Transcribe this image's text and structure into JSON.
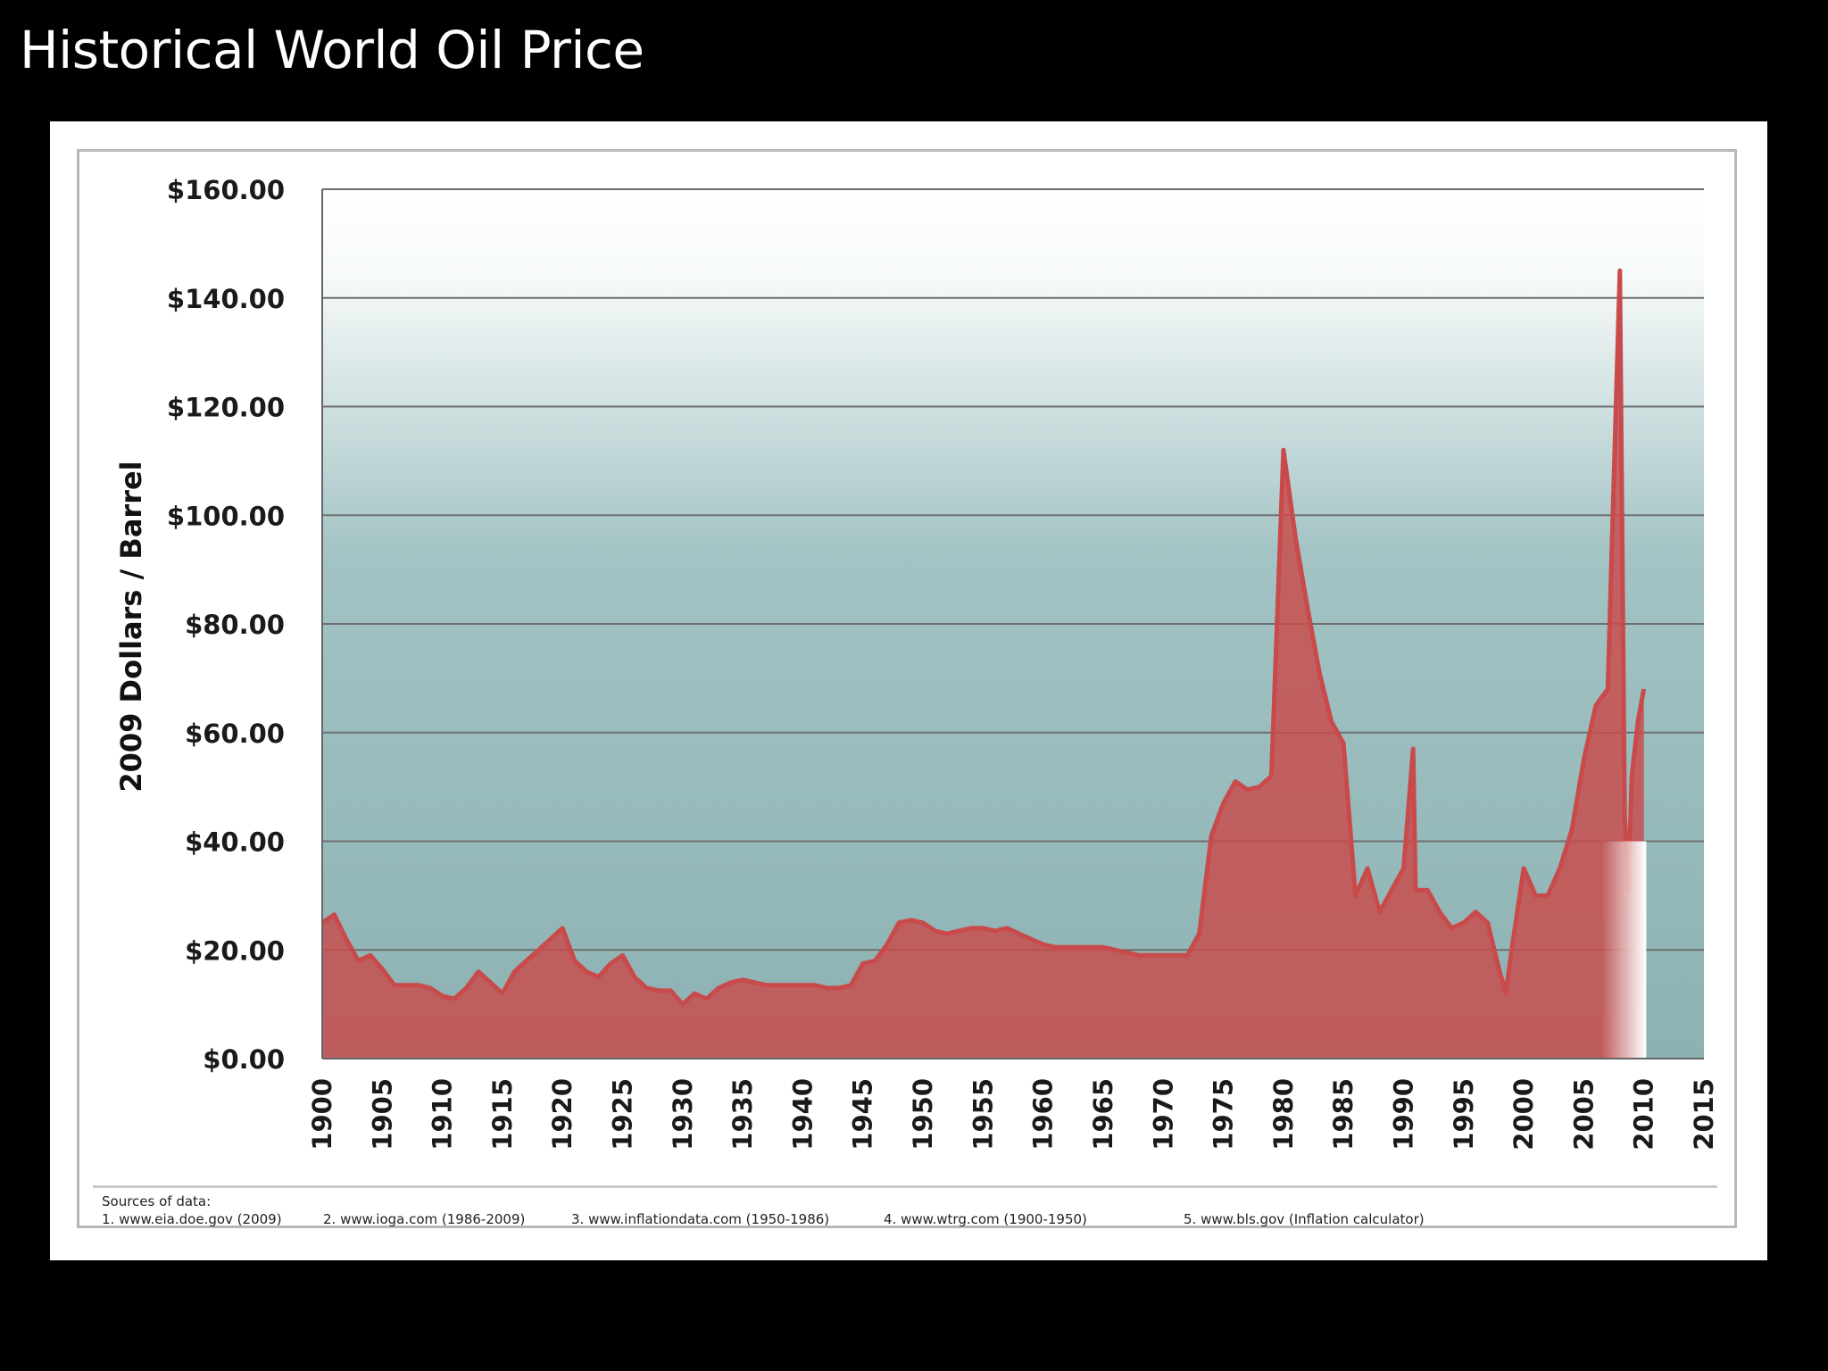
{
  "slide": {
    "title": "Historical World Oil Price"
  },
  "chart_data": {
    "type": "area",
    "title": "",
    "xlabel": "",
    "ylabel": "2009 Dollars / Barrel",
    "xlim": [
      1900,
      2015
    ],
    "ylim": [
      0,
      160
    ],
    "grid": true,
    "y_ticks": [
      "$0.00",
      "$20.00",
      "$40.00",
      "$60.00",
      "$80.00",
      "$100.00",
      "$120.00",
      "$140.00",
      "$160.00"
    ],
    "y_tick_values": [
      0,
      20,
      40,
      60,
      80,
      100,
      120,
      140,
      160
    ],
    "x_ticks": [
      "1900",
      "1905",
      "1910",
      "1915",
      "1920",
      "1925",
      "1930",
      "1935",
      "1940",
      "1945",
      "1950",
      "1955",
      "1960",
      "1965",
      "1970",
      "1975",
      "1980",
      "1985",
      "1990",
      "1995",
      "2000",
      "2005",
      "2010",
      "2015"
    ],
    "x_tick_values": [
      1900,
      1905,
      1910,
      1915,
      1920,
      1925,
      1930,
      1935,
      1940,
      1945,
      1950,
      1955,
      1960,
      1965,
      1970,
      1975,
      1980,
      1985,
      1990,
      1995,
      2000,
      2005,
      2010,
      2015
    ],
    "series": [
      {
        "color": "#c94a4a",
        "points": [
          [
            1900,
            25
          ],
          [
            1901,
            26.5
          ],
          [
            1902,
            22
          ],
          [
            1903,
            18
          ],
          [
            1904,
            19
          ],
          [
            1905,
            16.5
          ],
          [
            1906,
            13.5
          ],
          [
            1907,
            13.5
          ],
          [
            1908,
            13.5
          ],
          [
            1909,
            13
          ],
          [
            1910,
            11.5
          ],
          [
            1911,
            11
          ],
          [
            1912,
            13
          ],
          [
            1913,
            16
          ],
          [
            1914,
            14
          ],
          [
            1915,
            12
          ],
          [
            1916,
            16
          ],
          [
            1917,
            18
          ],
          [
            1918,
            20
          ],
          [
            1919,
            22
          ],
          [
            1920,
            24
          ],
          [
            1921,
            18
          ],
          [
            1922,
            16
          ],
          [
            1923,
            15
          ],
          [
            1924,
            17.5
          ],
          [
            1925,
            19
          ],
          [
            1926,
            15
          ],
          [
            1927,
            13
          ],
          [
            1928,
            12.5
          ],
          [
            1929,
            12.5
          ],
          [
            1930,
            10
          ],
          [
            1931,
            12
          ],
          [
            1932,
            11
          ],
          [
            1933,
            13
          ],
          [
            1934,
            14
          ],
          [
            1935,
            14.5
          ],
          [
            1936,
            14
          ],
          [
            1937,
            13.5
          ],
          [
            1938,
            13.5
          ],
          [
            1939,
            13.5
          ],
          [
            1940,
            13.5
          ],
          [
            1941,
            13.5
          ],
          [
            1942,
            13
          ],
          [
            1943,
            13
          ],
          [
            1944,
            13.5
          ],
          [
            1945,
            17.5
          ],
          [
            1946,
            18
          ],
          [
            1947,
            21
          ],
          [
            1948,
            25
          ],
          [
            1949,
            25.5
          ],
          [
            1950,
            25
          ],
          [
            1951,
            23.5
          ],
          [
            1952,
            23
          ],
          [
            1953,
            23.5
          ],
          [
            1954,
            24
          ],
          [
            1955,
            24
          ],
          [
            1956,
            23.5
          ],
          [
            1957,
            24
          ],
          [
            1958,
            23
          ],
          [
            1959,
            22
          ],
          [
            1960,
            21
          ],
          [
            1961,
            20.5
          ],
          [
            1962,
            20.5
          ],
          [
            1963,
            20.5
          ],
          [
            1964,
            20.5
          ],
          [
            1965,
            20.5
          ],
          [
            1966,
            20
          ],
          [
            1967,
            19.5
          ],
          [
            1968,
            19
          ],
          [
            1969,
            19
          ],
          [
            1970,
            19
          ],
          [
            1971,
            19
          ],
          [
            1972,
            19
          ],
          [
            1973,
            23
          ],
          [
            1974,
            41
          ],
          [
            1975,
            47
          ],
          [
            1976,
            51
          ],
          [
            1977,
            49.5
          ],
          [
            1978,
            50
          ],
          [
            1979,
            52
          ],
          [
            1980,
            112
          ],
          [
            1981,
            96
          ],
          [
            1982,
            83
          ],
          [
            1983,
            71
          ],
          [
            1984,
            62
          ],
          [
            1985,
            58
          ],
          [
            1986,
            30
          ],
          [
            1987,
            35
          ],
          [
            1988,
            27
          ],
          [
            1989,
            31
          ],
          [
            1990,
            35
          ],
          [
            1990.8,
            57
          ],
          [
            1991,
            31
          ],
          [
            1992,
            31
          ],
          [
            1993,
            27
          ],
          [
            1994,
            24
          ],
          [
            1995,
            25
          ],
          [
            1996,
            27
          ],
          [
            1997,
            25
          ],
          [
            1998,
            16
          ],
          [
            1998.5,
            12
          ],
          [
            1999,
            20
          ],
          [
            2000,
            35
          ],
          [
            2001,
            30
          ],
          [
            2002,
            30
          ],
          [
            2003,
            35
          ],
          [
            2004,
            42
          ],
          [
            2005,
            55
          ],
          [
            2006,
            65
          ],
          [
            2007,
            68
          ],
          [
            2008,
            145
          ],
          [
            2008.4,
            45
          ],
          [
            2008.7,
            31
          ],
          [
            2009,
            52
          ],
          [
            2009.5,
            62
          ],
          [
            2010,
            68
          ]
        ]
      }
    ]
  },
  "sources": {
    "heading": "Sources of data:",
    "items": [
      "1. www.eia.doe.gov (2009)",
      "2. www.ioga.com (1986-2009)",
      "3. www.inflationdata.com (1950-1986)",
      "4. www.wtrg.com (1900-1950)",
      "5. www.bls.gov (Inflation calculator)"
    ]
  }
}
